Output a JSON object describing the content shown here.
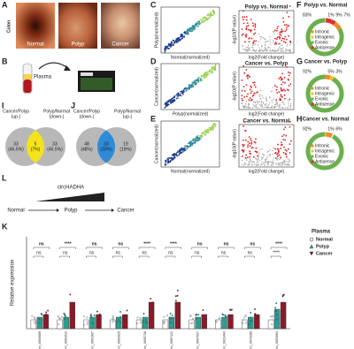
{
  "panel_labels": [
    "A",
    "B",
    "C",
    "D",
    "E",
    "F",
    "G",
    "H",
    "I",
    "J",
    "K",
    "L"
  ],
  "A": {
    "row_label": "Colon",
    "images": [
      "Normal",
      "Polyp",
      "Cancer"
    ]
  },
  "B": {
    "label": "Plasma"
  },
  "scatter": [
    {
      "y_label": "Polyp(normalized)",
      "x_label": "Normal(normalized)"
    },
    {
      "y_label": "Cancer(normalized)",
      "x_label": "Polyp(normalized)"
    },
    {
      "y_label": "Cancer(normalized)",
      "x_label": "Normal(normalized)"
    }
  ],
  "volcano": [
    {
      "title": "Polyp vs. Normal",
      "y_label": "-log10(P value)",
      "x_label": "log2(Fold change)"
    },
    {
      "title": "Cancer vs. Polyp",
      "y_label": "-log10(P value)",
      "x_label": "log2(Fold change)"
    },
    {
      "title": "Cancer vs. Normal",
      "y_label": "-log10(P value)",
      "x_label": "log2(Fold change)"
    }
  ],
  "donut_legend": [
    {
      "name": "Intronic",
      "color": "#f08a24"
    },
    {
      "name": "Intragenic",
      "color": "#f5c518"
    },
    {
      "name": "Exonic",
      "color": "#6ab04c"
    },
    {
      "name": "Antisense",
      "color": "#e03030"
    }
  ],
  "donuts": [
    {
      "title": "Polyp vs. Normal",
      "slices": [
        {
          "name": "Exonic",
          "value": 83,
          "label": "83%"
        },
        {
          "name": "Intragenic",
          "value": 1,
          "label": "1%"
        },
        {
          "name": "Antisense",
          "value": 9,
          "label": "9%"
        },
        {
          "name": "Intronic",
          "value": 7,
          "label": "7%"
        }
      ]
    },
    {
      "title": "Cancer vs. Polyp",
      "slices": [
        {
          "name": "Exonic",
          "value": 92,
          "label": "92%"
        },
        {
          "name": "Intronic",
          "value": 5,
          "label": "5%"
        },
        {
          "name": "Intragenic",
          "value": 3,
          "label": "3%"
        }
      ]
    },
    {
      "title": "Cancer vs. Normal",
      "slices": [
        {
          "name": "Exonic",
          "value": 92,
          "label": "92%"
        },
        {
          "name": "Intragenic",
          "value": 1,
          "label": "1%"
        },
        {
          "name": "Intronic",
          "value": 6,
          "label": "6%"
        }
      ]
    }
  ],
  "I": {
    "left_header": [
      "Cancer/Polyp",
      "(up-)"
    ],
    "right_header": [
      "Polyp/Normal",
      "(down-)"
    ],
    "left": [
      "33",
      "(46.5%)"
    ],
    "overlap": [
      "5",
      "(7%)"
    ],
    "right": [
      "33",
      "(46.5%)"
    ]
  },
  "J": {
    "left_header": [
      "Cancer/Polyp",
      "(down-)"
    ],
    "right_header": [
      "Polyp/Normal",
      "(up-)"
    ],
    "left": [
      "48",
      "(48%)"
    ],
    "overlap": [
      "33",
      "(33%)"
    ],
    "right": [
      "19",
      "(19%)"
    ]
  },
  "L": {
    "gene": "circHADHA",
    "stages": [
      "Normal",
      "Polyp",
      "Cancer"
    ]
  },
  "K": {
    "y_label": "Relative expression",
    "categories": [
      "hsa_circ_0000689",
      "hsa_circ_0001013",
      "hsa_circ_0001907",
      "hsa_circ_0003915",
      "hsa_circ_0005728",
      "hsa_circ_0007422",
      "hsa_circ_0007637",
      "hsa_circ_0023404",
      "hsa_circ_0041189",
      "hsa_circ_0053063"
    ],
    "sig_outer": [
      "ns",
      "****",
      "ns",
      "ns",
      "****",
      "****",
      "ns",
      "ns",
      "ns",
      "****"
    ],
    "sig_inner": [
      "ns",
      "ns",
      "ns",
      "ns",
      "ns",
      "ns",
      "ns",
      "ns",
      "ns",
      "****"
    ],
    "legend_title": "Plasma",
    "groups": [
      "Normal",
      "Polyp",
      "Cancer"
    ]
  }
}
